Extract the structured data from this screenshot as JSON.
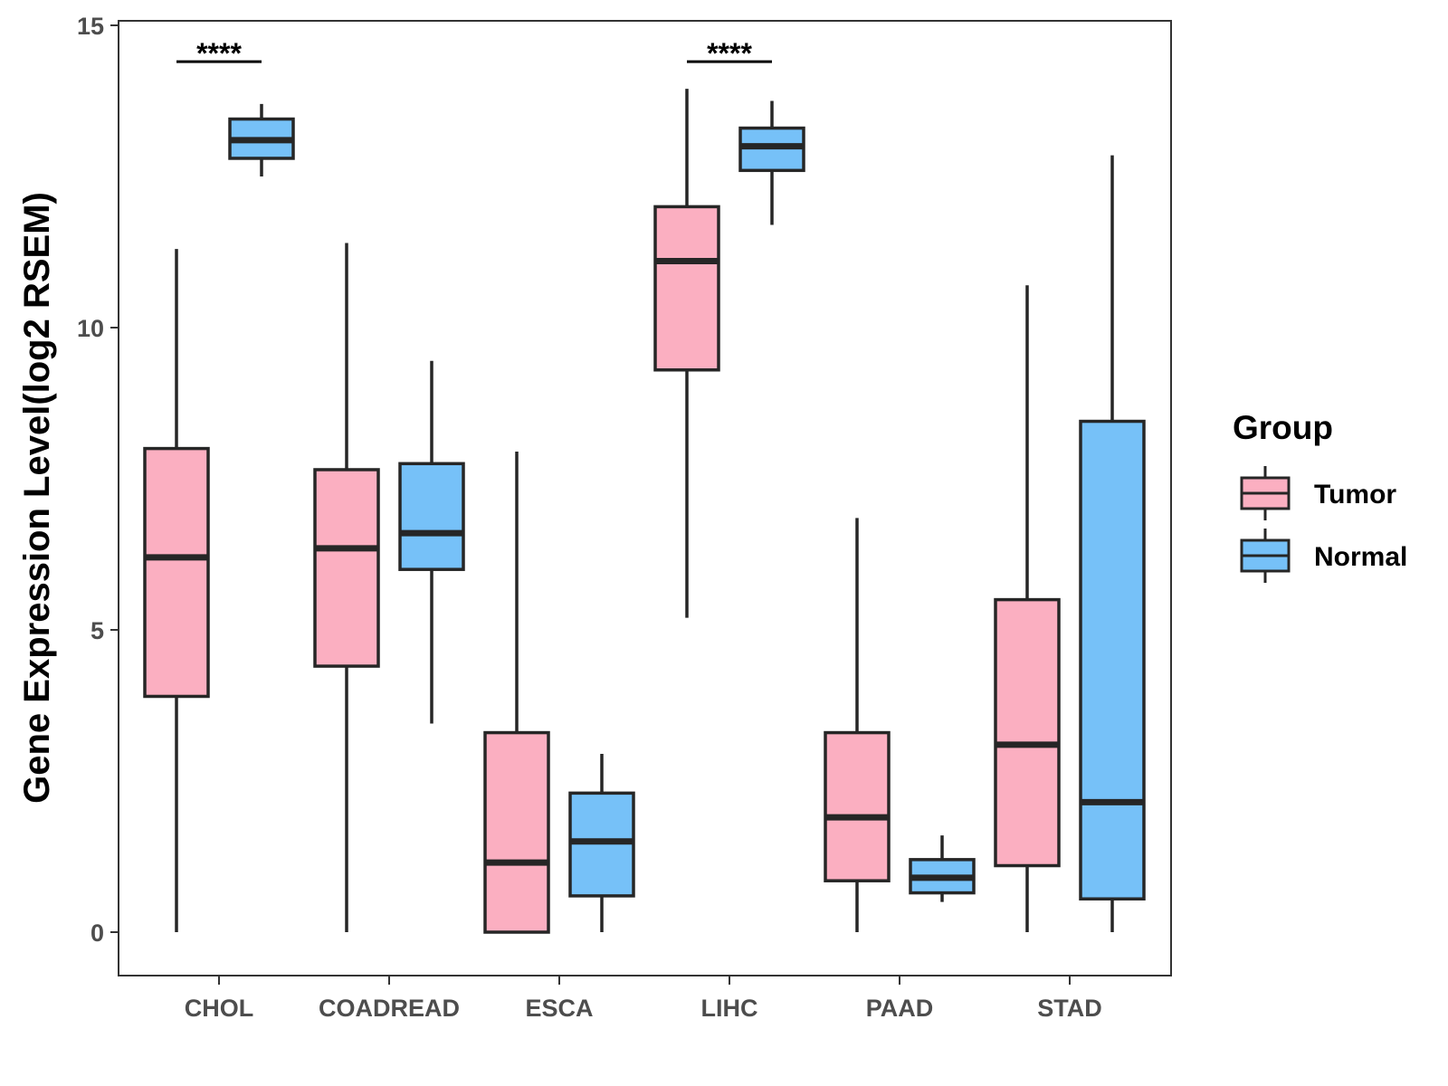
{
  "chart_data": {
    "type": "boxplot",
    "ylabel": "Gene Expression Level(log2 RSEM)",
    "xlabel": "",
    "ylim": [
      -0.7,
      15.1
    ],
    "yticks": [
      0,
      5,
      10,
      15
    ],
    "ytick_labels": [
      "0",
      "5",
      "10",
      "15"
    ],
    "categories": [
      "CHOL",
      "COADREAD",
      "ESCA",
      "LIHC",
      "PAAD",
      "STAD"
    ],
    "legend": {
      "title": "Group",
      "position": "right",
      "entries": [
        {
          "name": "Tumor",
          "color": "#fbafc1"
        },
        {
          "name": "Normal",
          "color": "#76c1f8"
        }
      ]
    },
    "series": [
      {
        "name": "Tumor",
        "color": "#fbafc1",
        "boxes": [
          {
            "category": "CHOL",
            "min": 0.0,
            "q1": 3.9,
            "median": 6.2,
            "q3": 8.0,
            "max": 11.3
          },
          {
            "category": "COADREAD",
            "min": 0.0,
            "q1": 4.4,
            "median": 6.35,
            "q3": 7.65,
            "max": 11.4
          },
          {
            "category": "ESCA",
            "min": 0.0,
            "q1": 0.0,
            "median": 1.15,
            "q3": 3.3,
            "max": 7.95
          },
          {
            "category": "LIHC",
            "min": 5.2,
            "q1": 9.3,
            "median": 11.1,
            "q3": 12.0,
            "max": 13.95
          },
          {
            "category": "PAAD",
            "min": 0.0,
            "q1": 0.85,
            "median": 1.9,
            "q3": 3.3,
            "max": 6.85
          },
          {
            "category": "STAD",
            "min": 0.0,
            "q1": 1.1,
            "median": 3.1,
            "q3": 5.5,
            "max": 10.7
          }
        ]
      },
      {
        "name": "Normal",
        "color": "#76c1f8",
        "boxes": [
          {
            "category": "CHOL",
            "min": 12.5,
            "q1": 12.8,
            "median": 13.1,
            "q3": 13.45,
            "max": 13.7
          },
          {
            "category": "COADREAD",
            "min": 3.45,
            "q1": 6.0,
            "median": 6.6,
            "q3": 7.75,
            "max": 9.45
          },
          {
            "category": "ESCA",
            "min": 0.0,
            "q1": 0.6,
            "median": 1.5,
            "q3": 2.3,
            "max": 2.95
          },
          {
            "category": "LIHC",
            "min": 11.7,
            "q1": 12.6,
            "median": 13.0,
            "q3": 13.3,
            "max": 13.75
          },
          {
            "category": "PAAD",
            "min": 0.5,
            "q1": 0.65,
            "median": 0.9,
            "q3": 1.2,
            "max": 1.6
          },
          {
            "category": "STAD",
            "min": 0.0,
            "q1": 0.55,
            "median": 2.15,
            "q3": 8.45,
            "max": 12.85
          }
        ]
      }
    ],
    "annotations": [
      {
        "category": "CHOL",
        "text": "****",
        "y": 14.4
      },
      {
        "category": "LIHC",
        "text": "****",
        "y": 14.4
      }
    ]
  }
}
